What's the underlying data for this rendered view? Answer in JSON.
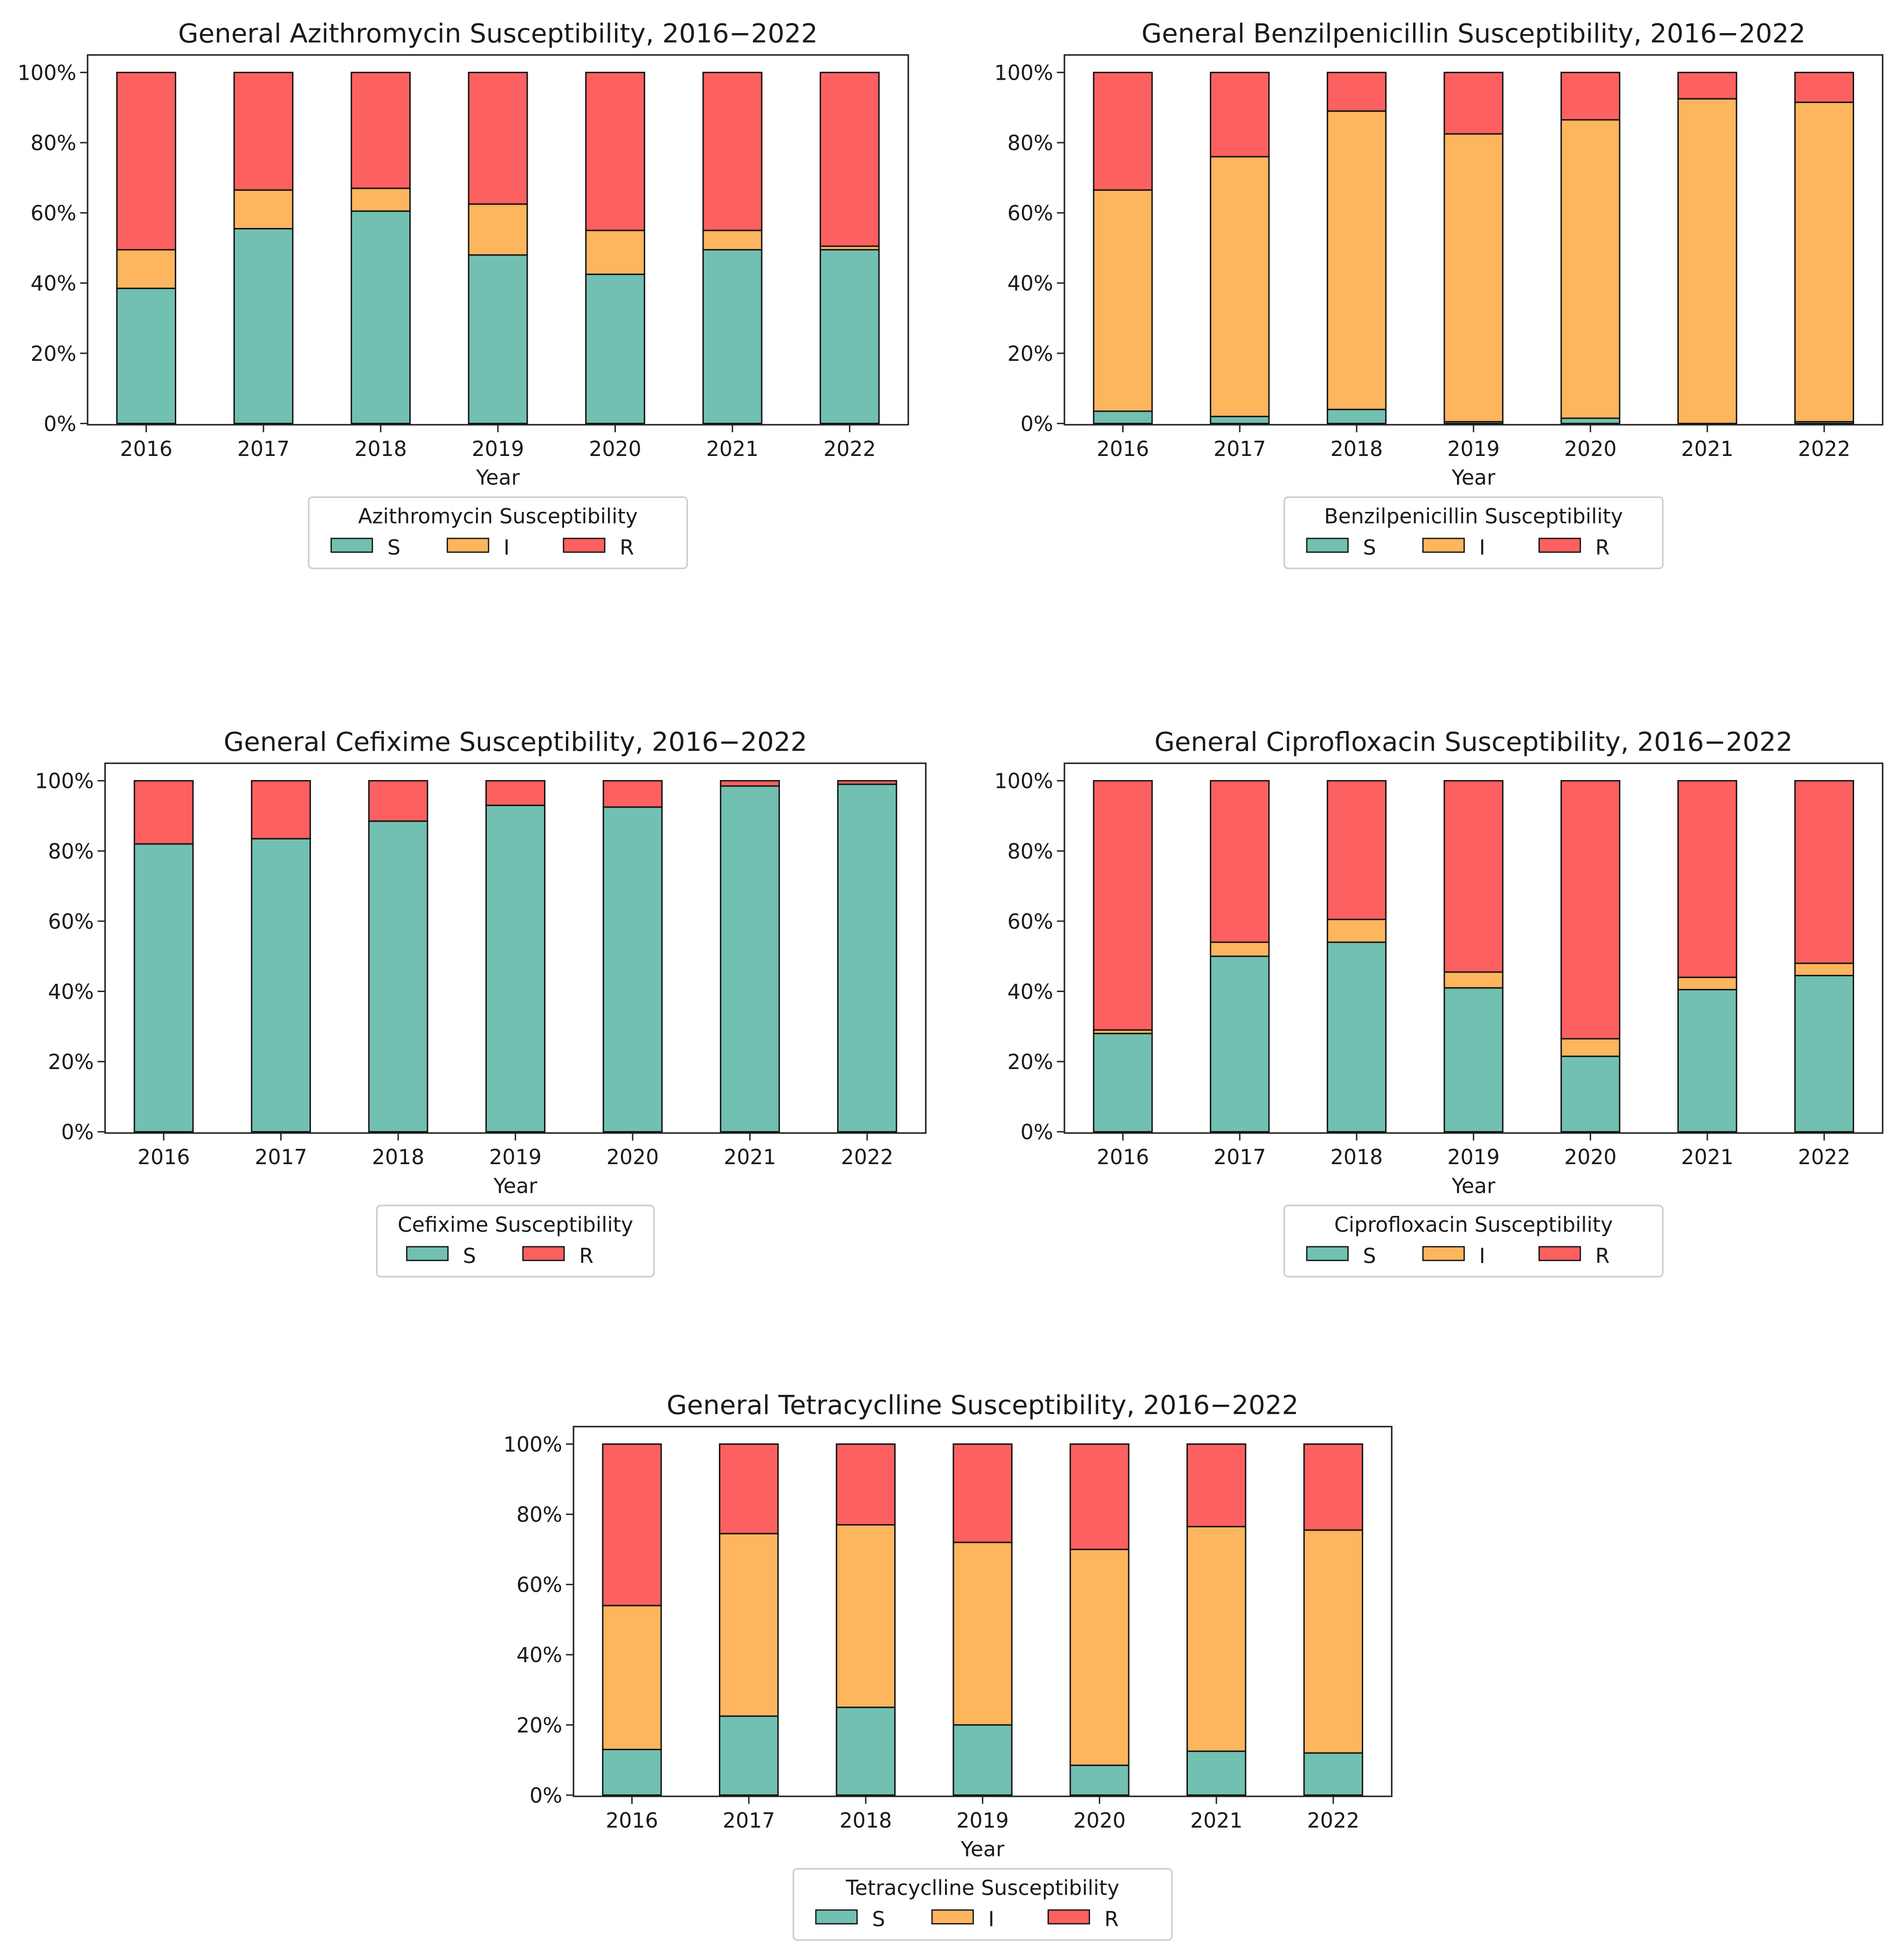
{
  "colors": {
    "S": "#72c0b1",
    "I": "#fdb55e",
    "R": "#fd6060",
    "edge": "#111111"
  },
  "chart_data": [
    {
      "type": "bar",
      "stacked": true,
      "title": "General Azithromycin Susceptibility, 2016−2022",
      "xlabel": "Year",
      "ylabel": "",
      "ylim": [
        0,
        100
      ],
      "yticks": [
        "0%",
        "20%",
        "40%",
        "60%",
        "80%",
        "100%"
      ],
      "categories": [
        "2016",
        "2017",
        "2018",
        "2019",
        "2020",
        "2021",
        "2022"
      ],
      "legend_title": "Azithromycin Susceptibility",
      "legend_position": "below",
      "series": [
        {
          "name": "S",
          "values": [
            38.5,
            55.5,
            60.5,
            48,
            42.5,
            49.5,
            49.5
          ]
        },
        {
          "name": "I",
          "values": [
            11,
            11,
            6.5,
            14.5,
            12.5,
            5.5,
            1
          ]
        },
        {
          "name": "R",
          "values": [
            50.5,
            33.5,
            33,
            37.5,
            45,
            45,
            49.5
          ]
        }
      ]
    },
    {
      "type": "bar",
      "stacked": true,
      "title": "General Benzilpenicillin Susceptibility, 2016−2022",
      "xlabel": "Year",
      "ylabel": "",
      "ylim": [
        0,
        100
      ],
      "yticks": [
        "0%",
        "20%",
        "40%",
        "60%",
        "80%",
        "100%"
      ],
      "categories": [
        "2016",
        "2017",
        "2018",
        "2019",
        "2020",
        "2021",
        "2022"
      ],
      "legend_title": "Benzilpenicillin Susceptibility",
      "legend_position": "below",
      "series": [
        {
          "name": "S",
          "values": [
            3.5,
            2,
            4,
            0.5,
            1.5,
            0,
            0.5
          ]
        },
        {
          "name": "I",
          "values": [
            63,
            74,
            85,
            82,
            85,
            92.5,
            91
          ]
        },
        {
          "name": "R",
          "values": [
            33.5,
            24,
            11,
            17.5,
            13.5,
            7.5,
            8.5
          ]
        }
      ]
    },
    {
      "type": "bar",
      "stacked": true,
      "title": "General Cefixime Susceptibility, 2016−2022",
      "xlabel": "Year",
      "ylabel": "",
      "ylim": [
        0,
        100
      ],
      "yticks": [
        "0%",
        "20%",
        "40%",
        "60%",
        "80%",
        "100%"
      ],
      "categories": [
        "2016",
        "2017",
        "2018",
        "2019",
        "2020",
        "2021",
        "2022"
      ],
      "legend_title": "Cefixime Susceptibility",
      "legend_position": "below",
      "series": [
        {
          "name": "S",
          "values": [
            82,
            83.5,
            88.5,
            93,
            92.5,
            98.5,
            99
          ]
        },
        {
          "name": "R",
          "values": [
            18,
            16.5,
            11.5,
            7,
            7.5,
            1.5,
            1
          ]
        }
      ]
    },
    {
      "type": "bar",
      "stacked": true,
      "title": "General Ciprofloxacin Susceptibility, 2016−2022",
      "xlabel": "Year",
      "ylabel": "",
      "ylim": [
        0,
        100
      ],
      "yticks": [
        "0%",
        "20%",
        "40%",
        "60%",
        "80%",
        "100%"
      ],
      "categories": [
        "2016",
        "2017",
        "2018",
        "2019",
        "2020",
        "2021",
        "2022"
      ],
      "legend_title": "Ciprofloxacin Susceptibility",
      "legend_position": "below",
      "series": [
        {
          "name": "S",
          "values": [
            28,
            50,
            54,
            41,
            21.5,
            40.5,
            44.5
          ]
        },
        {
          "name": "I",
          "values": [
            1,
            4,
            6.5,
            4.5,
            5,
            3.5,
            3.5
          ]
        },
        {
          "name": "R",
          "values": [
            71,
            46,
            39.5,
            54.5,
            73.5,
            56,
            52
          ]
        }
      ]
    },
    {
      "type": "bar",
      "stacked": true,
      "title": "General Tetracyclline Susceptibility, 2016−2022",
      "xlabel": "Year",
      "ylabel": "",
      "ylim": [
        0,
        100
      ],
      "yticks": [
        "0%",
        "20%",
        "40%",
        "60%",
        "80%",
        "100%"
      ],
      "categories": [
        "2016",
        "2017",
        "2018",
        "2019",
        "2020",
        "2021",
        "2022"
      ],
      "legend_title": "Tetracyclline Susceptibility",
      "legend_position": "below",
      "series": [
        {
          "name": "S",
          "values": [
            13,
            22.5,
            25,
            20,
            8.5,
            12.5,
            12
          ]
        },
        {
          "name": "I",
          "values": [
            41,
            52,
            52,
            52,
            61.5,
            64,
            63.5
          ]
        },
        {
          "name": "R",
          "values": [
            46,
            25.5,
            23,
            28,
            30,
            23.5,
            24.5
          ]
        }
      ]
    }
  ]
}
